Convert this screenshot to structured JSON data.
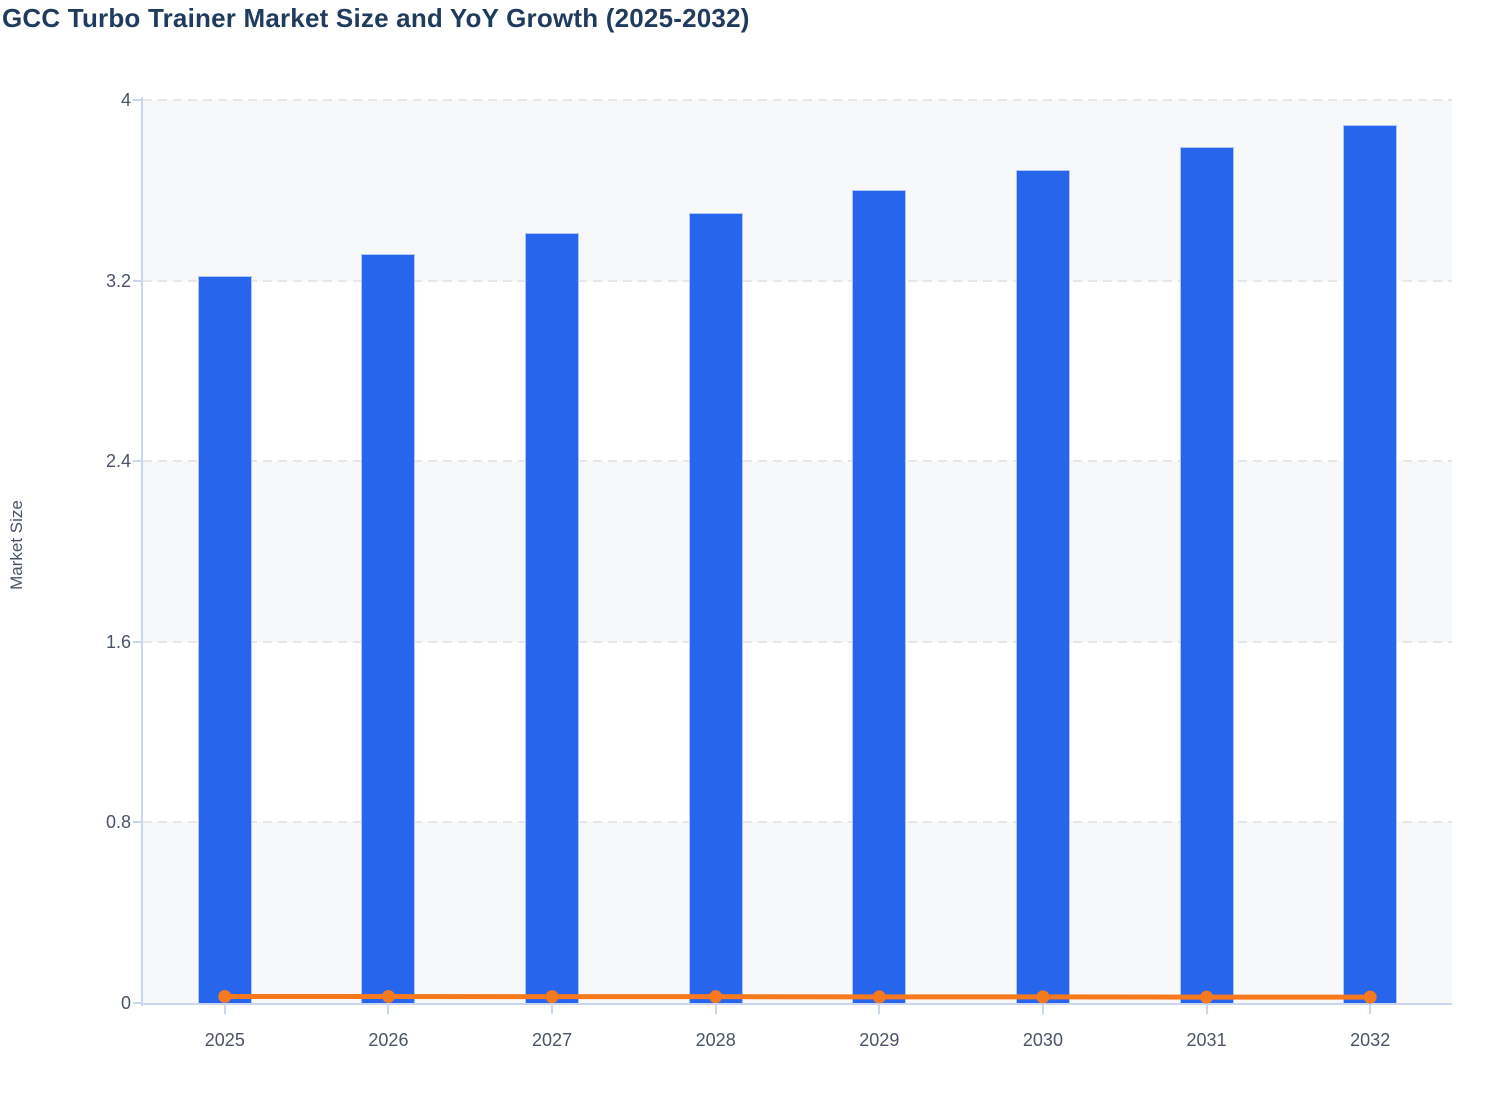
{
  "chart": {
    "title": "GCC Turbo Trainer Market Size and YoY Growth (2025-2032)"
  },
  "chart_data": {
    "type": "bar",
    "title": "GCC Turbo Trainer Market Size and YoY Growth (2025-2032)",
    "categories": [
      "2025",
      "2026",
      "2027",
      "2028",
      "2029",
      "2030",
      "2031",
      "2032"
    ],
    "series": [
      {
        "name": "Market Size",
        "type": "bar",
        "values": [
          3.22,
          3.32,
          3.41,
          3.5,
          3.6,
          3.69,
          3.79,
          3.89
        ]
      },
      {
        "name": "YoY Growth",
        "type": "line",
        "values": [
          0.029,
          0.029,
          0.028,
          0.028,
          0.027,
          0.027,
          0.026,
          0.026
        ]
      }
    ],
    "xlabel": "",
    "ylabel": "Market Size",
    "ylim": [
      0,
      4
    ],
    "y_ticks": [
      0,
      0.8,
      1.6,
      2.4,
      3.2,
      4
    ],
    "y_tick_labels": [
      "0",
      "0.8",
      "1.6",
      "2.4",
      "3.2",
      "4"
    ],
    "grid": "horizontal-dashed",
    "legend_position": "none",
    "colors": {
      "bar": "#2765EC",
      "bar_border": "#AFC7F2",
      "line": "#F7791E",
      "title": "#1F3B5E",
      "tick_label": "#4A5468",
      "axis": "#C9D5F1",
      "gridline": "#E5E7EB",
      "band": "#F7F8FA",
      "background": "#FFFFFF"
    }
  }
}
